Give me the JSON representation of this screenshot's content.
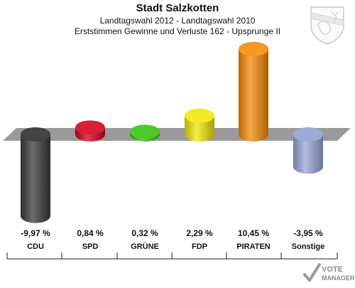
{
  "header": {
    "title": "Stadt Salzkotten",
    "subtitle1": "Landtagswahl 2012 - Landtagswahl 2010",
    "subtitle2": "Erststimmen Gewinne und Verluste 162 - Upsprunge II"
  },
  "chart_data": {
    "type": "bar",
    "categories": [
      "CDU",
      "SPD",
      "GRÜNE",
      "FDP",
      "PIRATEN",
      "Sonstige"
    ],
    "values": [
      -9.97,
      0.84,
      0.32,
      2.29,
      10.45,
      -3.95
    ],
    "value_labels": [
      "-9,97 %",
      "0,84 %",
      "0,32 %",
      "2,29 %",
      "10,45 %",
      "-3,95 %"
    ],
    "colors": [
      "#3a3a3a",
      "#d40018",
      "#33c40e",
      "#f2e60a",
      "#f58a05",
      "#98a6d4"
    ],
    "title": "Stadt Salzkotten",
    "xlabel": "",
    "ylabel": "",
    "grid": false
  },
  "logo": {
    "text_top": "VOTE",
    "text_bottom": "MANAGER"
  }
}
